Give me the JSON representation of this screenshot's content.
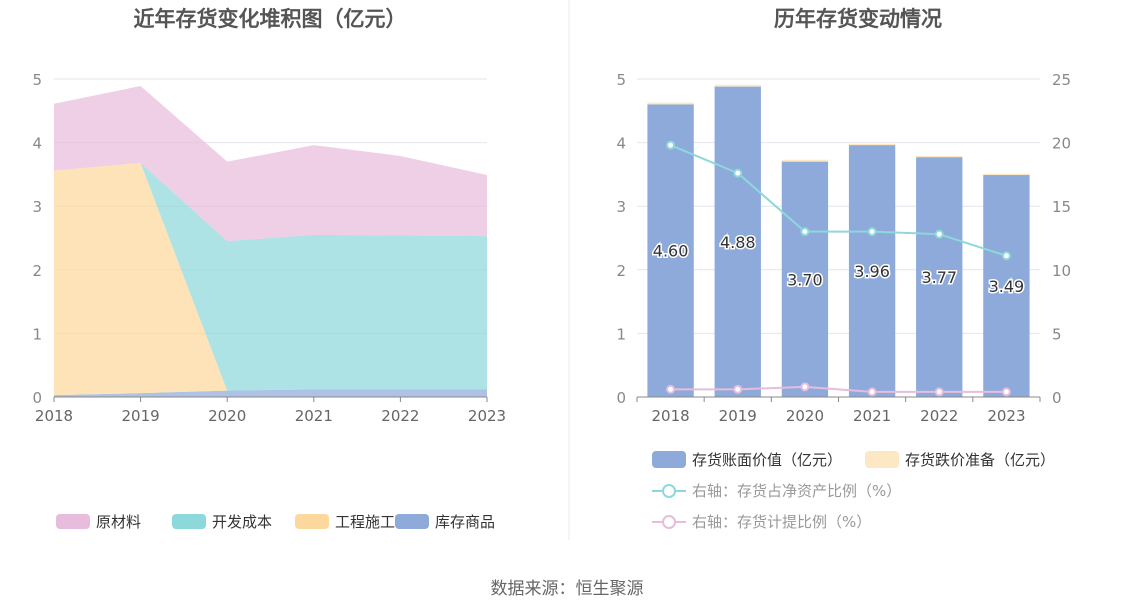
{
  "source_text": "数据来源：恒生聚源",
  "chart_data": [
    {
      "type": "area",
      "stacked": true,
      "title": "近年存货变化堆积图（亿元）",
      "x": [
        "2018",
        "2019",
        "2020",
        "2021",
        "2022",
        "2023"
      ],
      "ylim": [
        0,
        5
      ],
      "yticks": [
        0,
        1,
        2,
        3,
        4,
        5
      ],
      "grid": true,
      "legend_position": "bottom",
      "series": [
        {
          "name": "原材料",
          "color": "#e7bcdc",
          "values": [
            1.05,
            1.21,
            1.25,
            1.41,
            1.25,
            0.96
          ]
        },
        {
          "name": "开发成本",
          "color": "#8dd8da",
          "values": [
            0.0,
            0.0,
            2.35,
            2.43,
            2.42,
            2.41
          ]
        },
        {
          "name": "工程施工",
          "color": "#fdd89c",
          "values": [
            3.53,
            3.62,
            0.0,
            0.0,
            0.0,
            0.0
          ]
        },
        {
          "name": "库存商品",
          "color": "#8eaadb",
          "values": [
            0.03,
            0.06,
            0.1,
            0.12,
            0.12,
            0.12
          ]
        }
      ]
    },
    {
      "type": "bar",
      "stacked": true,
      "title": "历年存货变动情况",
      "categories": [
        "2018",
        "2019",
        "2020",
        "2021",
        "2022",
        "2023"
      ],
      "ylim": [
        0,
        5
      ],
      "yticks": [
        0,
        1,
        2,
        3,
        4,
        5
      ],
      "y2lim": [
        0,
        25
      ],
      "y2ticks": [
        0,
        5,
        10,
        15,
        20,
        25
      ],
      "grid": true,
      "legend_position": "bottom",
      "bar_series": [
        {
          "name": "存货账面价值（亿元）",
          "color": "#8eaadb",
          "values": [
            4.6,
            4.88,
            3.7,
            3.96,
            3.77,
            3.49
          ],
          "labels": [
            "4.60",
            "4.88",
            "3.70",
            "3.96",
            "3.77",
            "3.49"
          ]
        },
        {
          "name": "存货跌价准备（亿元）",
          "color": "#fde8c4",
          "values": [
            0.03,
            0.03,
            0.03,
            0.02,
            0.02,
            0.02
          ]
        }
      ],
      "line_series": [
        {
          "name": "右轴：存货占净资产比例（%）",
          "color": "#8dd8da",
          "axis": "right",
          "values": [
            19.8,
            17.6,
            13.0,
            13.0,
            12.8,
            11.1
          ]
        },
        {
          "name": "右轴：存货计提比例（%）",
          "color": "#e7bcdc",
          "axis": "right",
          "values": [
            0.6,
            0.6,
            0.8,
            0.4,
            0.4,
            0.4
          ]
        }
      ]
    }
  ]
}
